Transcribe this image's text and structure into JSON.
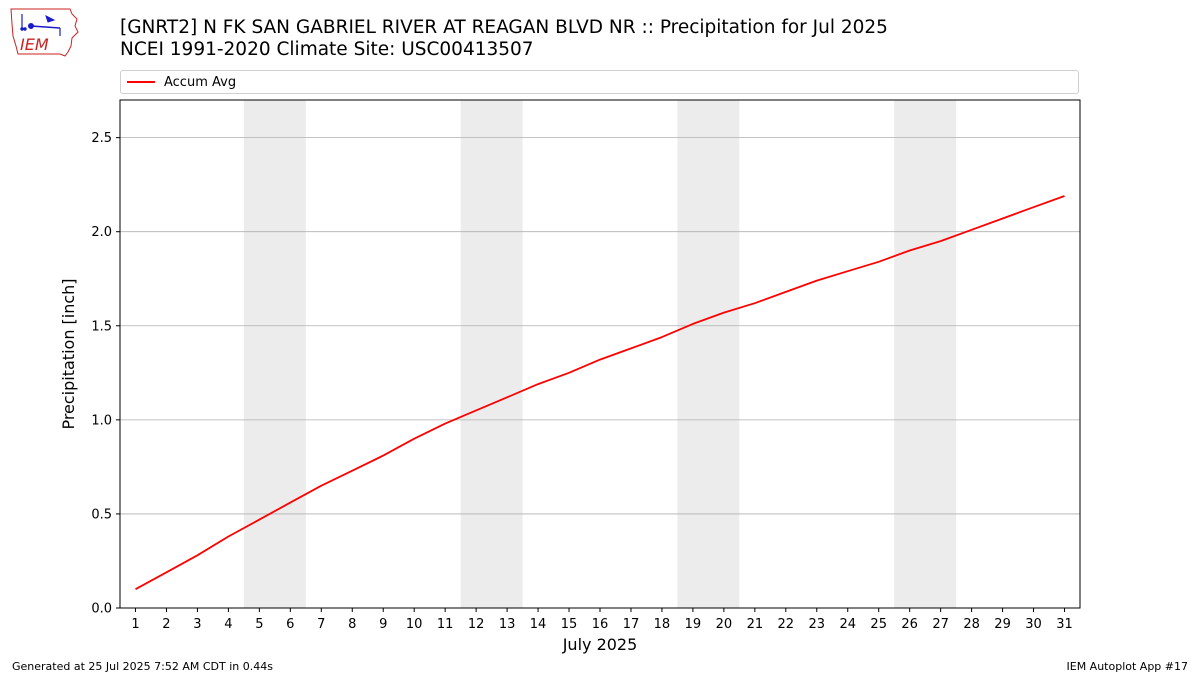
{
  "header": {
    "title_line1": "[GNRT2] N FK SAN GABRIEL RIVER AT REAGAN BLVD NR :: Precipitation for Jul 2025",
    "title_line2": "NCEI 1991-2020 Climate Site: USC00413507"
  },
  "logo": {
    "text": "IEM"
  },
  "footer": {
    "left": "Generated at 25 Jul 2025 7:52 AM CDT in 0.44s",
    "right": "IEM Autoplot App #17"
  },
  "colors": {
    "line": "#ff0000",
    "weekend_band": "#ececec",
    "grid": "#b0b0b0",
    "logo_red": "#cc2222",
    "logo_blue": "#1a1acc"
  },
  "chart_data": {
    "type": "line",
    "xlabel": "July 2025",
    "ylabel": "Precipitation [inch]",
    "xlim": [
      0.5,
      31.5
    ],
    "ylim": [
      0,
      2.7
    ],
    "yticks": [
      0.0,
      0.5,
      1.0,
      1.5,
      2.0,
      2.5
    ],
    "ytick_labels": [
      "0.0",
      "0.5",
      "1.0",
      "1.5",
      "2.0",
      "2.5"
    ],
    "xticks": [
      1,
      2,
      3,
      4,
      5,
      6,
      7,
      8,
      9,
      10,
      11,
      12,
      13,
      14,
      15,
      16,
      17,
      18,
      19,
      20,
      21,
      22,
      23,
      24,
      25,
      26,
      27,
      28,
      29,
      30,
      31
    ],
    "grid": "y",
    "legend_position": "top",
    "weekend_bands": [
      [
        5,
        6
      ],
      [
        12,
        13
      ],
      [
        19,
        20
      ],
      [
        26,
        27
      ]
    ],
    "series": [
      {
        "name": "Accum Avg",
        "color": "#ff0000",
        "x": [
          1,
          2,
          3,
          4,
          5,
          6,
          7,
          8,
          9,
          10,
          11,
          12,
          13,
          14,
          15,
          16,
          17,
          18,
          19,
          20,
          21,
          22,
          23,
          24,
          25,
          26,
          27,
          28,
          29,
          30,
          31
        ],
        "y": [
          0.1,
          0.19,
          0.28,
          0.38,
          0.47,
          0.56,
          0.65,
          0.73,
          0.81,
          0.9,
          0.98,
          1.05,
          1.12,
          1.19,
          1.25,
          1.32,
          1.38,
          1.44,
          1.51,
          1.57,
          1.62,
          1.68,
          1.74,
          1.79,
          1.84,
          1.9,
          1.95,
          2.01,
          2.07,
          2.13,
          2.19
        ]
      }
    ]
  }
}
